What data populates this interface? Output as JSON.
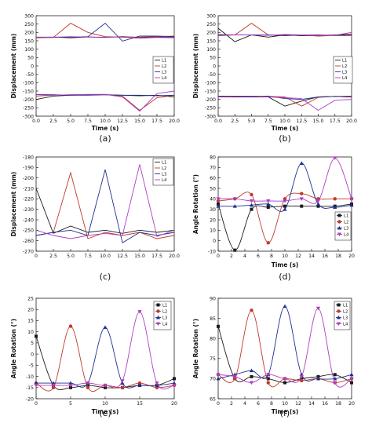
{
  "colors": {
    "L1": "#1a1a1a",
    "L2": "#c0392b",
    "L3": "#1f2f8f",
    "L4": "#b03cc0"
  },
  "chart_data": [
    {
      "type": "line",
      "caption": "(a)",
      "xlabel": "Time (s)",
      "ylabel": "Displacement (mm)",
      "xlim": [
        0,
        20
      ],
      "ylim": [
        -300,
        300
      ],
      "xticks": [
        "0.0",
        "2.5",
        "5.0",
        "7.5",
        "10.0",
        "12.5",
        "15.0",
        "17.5",
        "20.0"
      ],
      "yticks": [
        "300",
        "250",
        "200",
        "150",
        "100",
        "50",
        "0",
        "-50",
        "-100",
        "-150",
        "-200",
        "-250",
        "-300"
      ],
      "legend": [
        "L1",
        "L2",
        "L3",
        "L4"
      ],
      "legend_position": "right",
      "markers": false,
      "series": [
        {
          "name": "L1",
          "x": [
            0,
            2.5,
            5,
            7.5,
            10,
            12.5,
            15,
            17.5,
            20
          ],
          "y": [
            172,
            172,
            168,
            173,
            170,
            175,
            170,
            172,
            170
          ]
        },
        {
          "name": "L2",
          "x": [
            0,
            2.5,
            5,
            7.5,
            10,
            12.5,
            15,
            17.5,
            20
          ],
          "y": [
            168,
            170,
            255,
            200,
            175,
            172,
            172,
            175,
            178
          ]
        },
        {
          "name": "L3",
          "x": [
            0,
            2.5,
            5,
            7.5,
            10,
            12.5,
            15,
            17.5,
            20
          ],
          "y": [
            170,
            170,
            172,
            175,
            255,
            148,
            178,
            178,
            175
          ]
        },
        {
          "name": "L4",
          "x": [
            0,
            2.5,
            5,
            7.5,
            10,
            12.5,
            15,
            17.5,
            20
          ],
          "y": [
            170,
            172,
            175,
            172,
            172,
            172,
            165,
            170,
            168
          ]
        },
        {
          "name": "L1",
          "x": [
            0,
            2.5,
            5,
            7.5,
            10,
            12.5,
            15,
            17.5,
            20
          ],
          "y": [
            -200,
            -180,
            -175,
            -172,
            -172,
            -175,
            -178,
            -175,
            -185
          ]
        },
        {
          "name": "L2",
          "x": [
            0,
            2.5,
            5,
            7.5,
            10,
            12.5,
            15,
            17.5,
            20
          ],
          "y": [
            -180,
            -175,
            -172,
            -170,
            -170,
            -180,
            -265,
            -190,
            -175
          ]
        },
        {
          "name": "L3",
          "x": [
            0,
            2.5,
            5,
            7.5,
            10,
            12.5,
            15,
            17.5,
            20
          ],
          "y": [
            -170,
            -172,
            -175,
            -175,
            -172,
            -175,
            -175,
            -178,
            -175
          ]
        },
        {
          "name": "L4",
          "x": [
            0,
            2.5,
            5,
            7.5,
            10,
            12.5,
            15,
            17.5,
            20
          ],
          "y": [
            -172,
            -175,
            -172,
            -170,
            -170,
            -185,
            -270,
            -165,
            -150
          ]
        }
      ]
    },
    {
      "type": "line",
      "caption": "(b)",
      "xlabel": "Time (s)",
      "ylabel": "Displacement (mm)",
      "xlim": [
        0,
        20
      ],
      "ylim": [
        -300,
        300
      ],
      "xticks": [
        "0.0",
        "2.5",
        "5.0",
        "7.5",
        "10.0",
        "12.5",
        "15.0",
        "17.5",
        "20.0"
      ],
      "yticks": [
        "300",
        "250",
        "200",
        "150",
        "100",
        "50",
        "0",
        "-50",
        "-100",
        "-150",
        "-200",
        "-250",
        "-300"
      ],
      "legend": [
        "L1",
        "L2",
        "L3",
        "L4"
      ],
      "legend_position": "right",
      "markers": false,
      "series": [
        {
          "name": "L1",
          "x": [
            0,
            2.5,
            5,
            7.5,
            10,
            12.5,
            15,
            17.5,
            20
          ],
          "y": [
            225,
            145,
            185,
            172,
            185,
            180,
            182,
            185,
            190
          ]
        },
        {
          "name": "L2",
          "x": [
            0,
            2.5,
            5,
            7.5,
            10,
            12.5,
            15,
            17.5,
            20
          ],
          "y": [
            180,
            185,
            255,
            185,
            180,
            185,
            178,
            182,
            180
          ]
        },
        {
          "name": "L3",
          "x": [
            0,
            2.5,
            5,
            7.5,
            10,
            12.5,
            15,
            17.5,
            20
          ],
          "y": [
            188,
            185,
            186,
            185,
            182,
            185,
            185,
            182,
            188
          ]
        },
        {
          "name": "L4",
          "x": [
            0,
            2.5,
            5,
            7.5,
            10,
            12.5,
            15,
            17.5,
            20
          ],
          "y": [
            183,
            186,
            185,
            183,
            188,
            185,
            182,
            183,
            200
          ]
        },
        {
          "name": "L1",
          "x": [
            0,
            2.5,
            5,
            7.5,
            10,
            12.5,
            15,
            17.5,
            20
          ],
          "y": [
            -185,
            -185,
            -185,
            -185,
            -240,
            -210,
            -185,
            -182,
            -185
          ]
        },
        {
          "name": "L2",
          "x": [
            0,
            2.5,
            5,
            7.5,
            10,
            12.5,
            15,
            17.5,
            20
          ],
          "y": [
            -182,
            -180,
            -180,
            -182,
            -185,
            -240,
            -188,
            -182,
            -180
          ]
        },
        {
          "name": "L3",
          "x": [
            0,
            2.5,
            5,
            7.5,
            10,
            12.5,
            15,
            17.5,
            20
          ],
          "y": [
            -180,
            -182,
            -185,
            -180,
            -195,
            -200,
            -185,
            -182,
            -185
          ]
        },
        {
          "name": "L4",
          "x": [
            0,
            2.5,
            5,
            7.5,
            10,
            12.5,
            15,
            17.5,
            20
          ],
          "y": [
            -185,
            -182,
            -180,
            -185,
            -190,
            -195,
            -265,
            -205,
            -200
          ]
        }
      ]
    },
    {
      "type": "line",
      "caption": "(c)",
      "xlabel": "",
      "ylabel": "Displacement (mm)",
      "xlim": [
        0,
        20
      ],
      "ylim": [
        -270,
        -180
      ],
      "xticks": [
        "0",
        "2.5",
        "5.0",
        "7.5",
        "10.0",
        "12.5",
        "15.0",
        "17.5",
        "20.0"
      ],
      "yticks": [
        "-180",
        "-190",
        "-200",
        "-210",
        "-220",
        "-230",
        "-240",
        "-250",
        "-260",
        "-270"
      ],
      "legend": [
        "L1",
        "L2",
        "L3",
        "L4"
      ],
      "legend_position": "top-right",
      "markers": false,
      "series": [
        {
          "name": "L1",
          "x": [
            0,
            2.5,
            5,
            7.5,
            10,
            12.5,
            15,
            17.5,
            20
          ],
          "y": [
            -210,
            -253,
            -246,
            -252,
            -250,
            -253,
            -250,
            -252,
            -250
          ]
        },
        {
          "name": "L2",
          "x": [
            0,
            2.5,
            5,
            7.5,
            10,
            12.5,
            15,
            17.5,
            20
          ],
          "y": [
            -255,
            -252,
            -195,
            -258,
            -252,
            -255,
            -252,
            -258,
            -255
          ]
        },
        {
          "name": "L3",
          "x": [
            0,
            2.5,
            5,
            7.5,
            10,
            12.5,
            15,
            17.5,
            20
          ],
          "y": [
            -255,
            -252,
            -250,
            -255,
            -192,
            -262,
            -252,
            -255,
            -252
          ]
        },
        {
          "name": "L4",
          "x": [
            0,
            2.5,
            5,
            7.5,
            10,
            12.5,
            15,
            17.5,
            20
          ],
          "y": [
            -250,
            -255,
            -258,
            -255,
            -253,
            -255,
            -187,
            -256,
            -250
          ]
        }
      ]
    },
    {
      "type": "line",
      "caption": "(d)",
      "xlabel": "Time (s)",
      "ylabel": "Angle Rotation (°)",
      "xlim": [
        0,
        20
      ],
      "ylim": [
        -10,
        80
      ],
      "xticks": [
        "0",
        "2",
        "4",
        "6",
        "8",
        "10",
        "12",
        "14",
        "16",
        "18",
        "20"
      ],
      "yticks": [
        "80",
        "70",
        "60",
        "50",
        "40",
        "30",
        "20",
        "10",
        "0",
        "-10"
      ],
      "legend": [
        "L1",
        "L2",
        "L3",
        "L4"
      ],
      "legend_position": "bottom-right",
      "markers": true,
      "series": [
        {
          "name": "L1",
          "x": [
            0,
            2.5,
            5,
            7.5,
            10,
            12.5,
            15,
            17.5,
            20
          ],
          "y": [
            35,
            -9,
            30,
            32,
            33,
            33,
            33,
            33,
            35
          ]
        },
        {
          "name": "L2",
          "x": [
            0,
            2.5,
            5,
            7.5,
            10,
            12.5,
            15,
            17.5,
            20
          ],
          "y": [
            38,
            40,
            44,
            -2,
            40,
            45,
            40,
            40,
            40
          ]
        },
        {
          "name": "L3",
          "x": [
            0,
            2.5,
            5,
            7.5,
            10,
            12.5,
            15,
            17.5,
            20
          ],
          "y": [
            33,
            33,
            34,
            35,
            30,
            74,
            35,
            32,
            34
          ]
        },
        {
          "name": "L4",
          "x": [
            0,
            2.5,
            5,
            7.5,
            10,
            12.5,
            15,
            17.5,
            20
          ],
          "y": [
            40,
            40,
            38,
            38,
            38,
            40,
            38,
            79,
            40
          ]
        }
      ]
    },
    {
      "type": "line",
      "caption": "(e)",
      "xlabel": "Time (s)",
      "ylabel": "Angle Rotation (°)",
      "xlim": [
        0,
        20
      ],
      "ylim": [
        -20,
        25
      ],
      "xticks": [
        "0",
        "5",
        "10",
        "15",
        "20"
      ],
      "yticks": [
        "25",
        "20",
        "15",
        "10",
        "5",
        "0",
        "-5",
        "-10",
        "-15",
        "-20"
      ],
      "legend": [
        "L1",
        "L2",
        "L3",
        "L4"
      ],
      "legend_position": "top-right",
      "markers": true,
      "series": [
        {
          "name": "L1",
          "x": [
            0,
            2.5,
            5,
            7.5,
            10,
            12.5,
            15,
            17.5,
            20
          ],
          "y": [
            8,
            -14,
            -15,
            -14,
            -15,
            -15,
            -14,
            -14,
            -11
          ]
        },
        {
          "name": "L2",
          "x": [
            0,
            2.5,
            5,
            7.5,
            10,
            12.5,
            15,
            17.5,
            20
          ],
          "y": [
            -13,
            -15,
            12.5,
            -15,
            -14,
            -15,
            -13,
            -15,
            -14
          ]
        },
        {
          "name": "L3",
          "x": [
            0,
            2.5,
            5,
            7.5,
            10,
            12.5,
            15,
            17.5,
            20
          ],
          "y": [
            -13,
            -13,
            -13,
            -13,
            12,
            -13,
            -14,
            -14,
            -13
          ]
        },
        {
          "name": "L4",
          "x": [
            0,
            2.5,
            5,
            7.5,
            10,
            12.5,
            15,
            17.5,
            20
          ],
          "y": [
            -14,
            -14,
            -14,
            -13,
            -14,
            -12,
            19,
            -13,
            -14
          ]
        }
      ]
    },
    {
      "type": "line",
      "caption": "(f)",
      "xlabel": "Time (s)",
      "ylabel": "Angle Rotation (°)",
      "xlim": [
        0,
        20
      ],
      "ylim": [
        65,
        90
      ],
      "xticks": [
        "0",
        "2",
        "4",
        "6",
        "8",
        "10",
        "12",
        "14",
        "16",
        "18",
        "20"
      ],
      "yticks": [
        "90",
        "85",
        "80",
        "75",
        "70",
        "65"
      ],
      "legend": [
        "L1",
        "L2",
        "L3",
        "L4"
      ],
      "legend_position": "top-right",
      "markers": true,
      "series": [
        {
          "name": "L1",
          "x": [
            0,
            2.5,
            5,
            7.5,
            10,
            12.5,
            15,
            17.5,
            20
          ],
          "y": [
            83,
            70,
            70.5,
            70,
            69,
            70,
            70.5,
            71,
            69
          ]
        },
        {
          "name": "L2",
          "x": [
            0,
            2.5,
            5,
            7.5,
            10,
            12.5,
            15,
            17.5,
            20
          ],
          "y": [
            71,
            70,
            87,
            69,
            70,
            69.5,
            70,
            69,
            70
          ]
        },
        {
          "name": "L3",
          "x": [
            0,
            2.5,
            5,
            7.5,
            10,
            12.5,
            15,
            17.5,
            20
          ],
          "y": [
            70,
            71,
            72,
            71,
            88,
            71,
            70,
            70,
            71
          ]
        },
        {
          "name": "L4",
          "x": [
            0,
            2.5,
            5,
            7.5,
            10,
            12.5,
            15,
            17.5,
            20
          ],
          "y": [
            71,
            70.5,
            69,
            71,
            70,
            70.5,
            87.5,
            69,
            70
          ]
        }
      ]
    }
  ]
}
